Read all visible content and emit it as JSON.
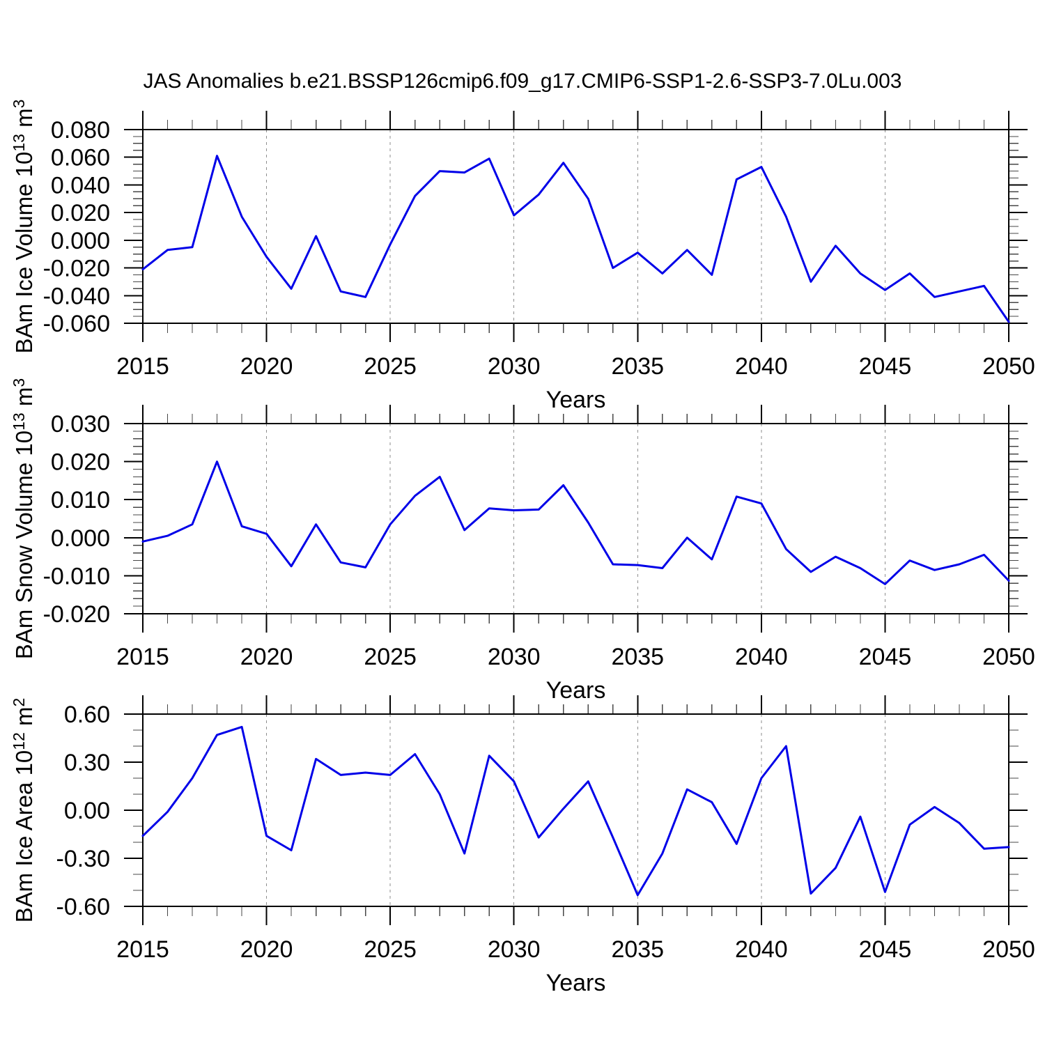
{
  "title": "JAS Anomalies b.e21.BSSP126cmip6.f09_g17.CMIP6-SSP1-2.6-SSP3-7.0Lu.003",
  "line_color": "#0000e8",
  "grid_color": "#8e8e8e",
  "x_axis": {
    "label": "Years",
    "start": 2015,
    "end": 2050,
    "tick_labels": [
      "2015",
      "2020",
      "2025",
      "2030",
      "2035",
      "2040",
      "2045",
      "2050"
    ],
    "gridline_years": [
      2020,
      2025,
      2030,
      2035,
      2040,
      2045
    ]
  },
  "years": [
    2015,
    2016,
    2017,
    2018,
    2019,
    2020,
    2021,
    2022,
    2023,
    2024,
    2025,
    2026,
    2027,
    2028,
    2029,
    2030,
    2031,
    2032,
    2033,
    2034,
    2035,
    2036,
    2037,
    2038,
    2039,
    2040,
    2041,
    2042,
    2043,
    2044,
    2045,
    2046,
    2047,
    2048,
    2049,
    2050
  ],
  "chart_data": [
    {
      "type": "line",
      "id": "ice-volume",
      "ylabel_parts": [
        [
          "BAm Ice Volume 10",
          0
        ],
        [
          "13",
          1
        ],
        [
          " m",
          0
        ],
        [
          "3",
          1
        ]
      ],
      "ylim": [
        -0.06,
        0.08
      ],
      "ytick_major": 0.02,
      "ytick_minor": 0.005,
      "ytick_labels": [
        "0.080",
        "0.060",
        "0.040",
        "0.020",
        "0.000",
        "-0.020",
        "-0.040",
        "-0.060"
      ],
      "values": [
        -0.021,
        -0.007,
        -0.005,
        0.061,
        0.017,
        -0.012,
        -0.035,
        0.003,
        -0.037,
        -0.041,
        -0.003,
        0.032,
        0.05,
        0.049,
        0.059,
        0.018,
        0.033,
        0.056,
        0.03,
        -0.02,
        -0.009,
        -0.024,
        -0.007,
        -0.025,
        0.044,
        0.053,
        0.017,
        -0.03,
        -0.004,
        -0.024,
        -0.036,
        -0.024,
        -0.041,
        -0.037,
        -0.033,
        -0.059
      ]
    },
    {
      "type": "line",
      "id": "snow-volume",
      "ylabel_parts": [
        [
          "BAm Snow Volume 10",
          0
        ],
        [
          "13",
          1
        ],
        [
          " m",
          0
        ],
        [
          "3",
          1
        ]
      ],
      "ylim": [
        -0.02,
        0.03
      ],
      "ytick_major": 0.01,
      "ytick_minor": 0.002,
      "ytick_labels": [
        "0.030",
        "0.020",
        "0.010",
        "0.000",
        "-0.010",
        "-0.020"
      ],
      "values": [
        -0.001,
        0.0005,
        0.0035,
        0.02,
        0.003,
        0.001,
        -0.0075,
        0.0035,
        -0.0065,
        -0.0078,
        0.0035,
        0.011,
        0.016,
        0.002,
        0.0077,
        0.0072,
        0.0074,
        0.0138,
        0.004,
        -0.007,
        -0.0072,
        -0.008,
        0.0,
        -0.0057,
        0.0108,
        0.009,
        -0.003,
        -0.009,
        -0.005,
        -0.008,
        -0.0122,
        -0.006,
        -0.0085,
        -0.007,
        -0.0045,
        -0.0113
      ]
    },
    {
      "type": "line",
      "id": "ice-area",
      "ylabel_parts": [
        [
          "BAm Ice Area 10",
          0
        ],
        [
          "12",
          1
        ],
        [
          " m",
          0
        ],
        [
          "2",
          1
        ]
      ],
      "ylim": [
        -0.6,
        0.6
      ],
      "ytick_major": 0.3,
      "ytick_minor": 0.1,
      "ytick_labels": [
        "0.60",
        "0.30",
        "0.00",
        "-0.30",
        "-0.60"
      ],
      "values": [
        -0.16,
        -0.01,
        0.2,
        0.47,
        0.52,
        -0.16,
        -0.25,
        0.32,
        0.22,
        0.235,
        0.22,
        0.35,
        0.1,
        -0.27,
        0.34,
        0.18,
        -0.17,
        0.01,
        0.18,
        -0.17,
        -0.53,
        -0.27,
        0.13,
        0.05,
        -0.21,
        0.2,
        0.4,
        -0.52,
        -0.36,
        -0.04,
        -0.51,
        -0.09,
        0.02,
        -0.08,
        -0.24,
        -0.23
      ]
    }
  ]
}
